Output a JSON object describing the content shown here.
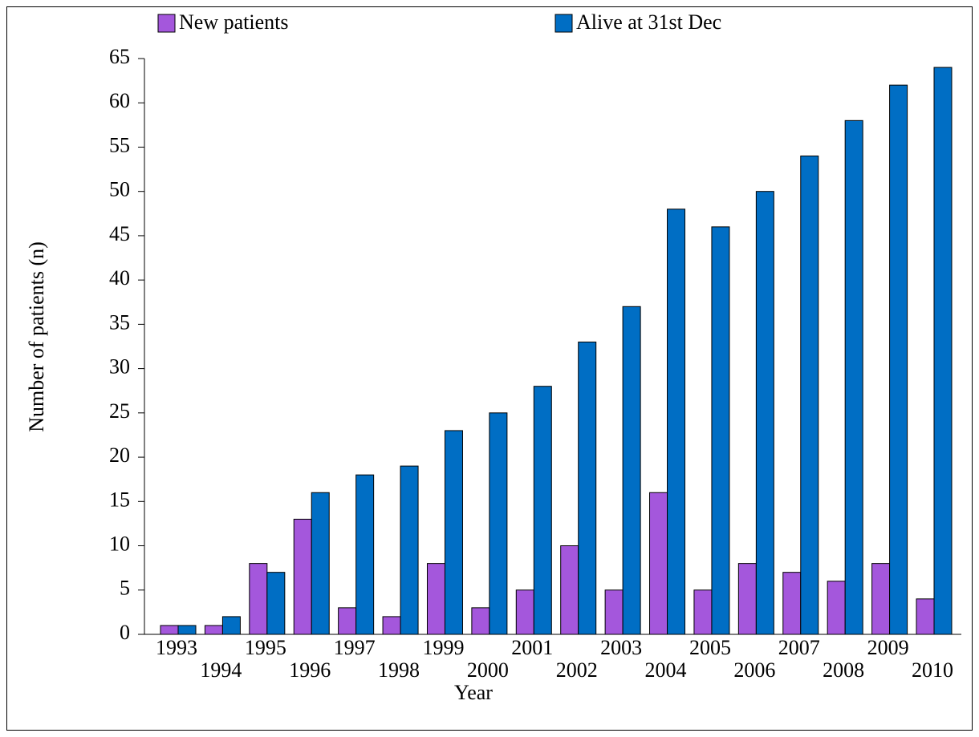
{
  "chart_data": {
    "type": "bar",
    "xlabel": "Year",
    "ylabel": "Number of patients (n)",
    "categories": [
      "1993",
      "1994",
      "1995",
      "1996",
      "1997",
      "1998",
      "1999",
      "2000",
      "2001",
      "2002",
      "2003",
      "2004",
      "2005",
      "2006",
      "2007",
      "2008",
      "2009",
      "2010"
    ],
    "series": [
      {
        "name": "New patients",
        "color": "#a457dc",
        "values": [
          1,
          1,
          8,
          13,
          3,
          2,
          8,
          3,
          5,
          10,
          5,
          16,
          5,
          8,
          7,
          6,
          8,
          4
        ]
      },
      {
        "name": "Alive at 31st Dec",
        "color": "#006ec4",
        "values": [
          1,
          2,
          7,
          16,
          18,
          19,
          23,
          25,
          28,
          33,
          37,
          48,
          46,
          50,
          54,
          58,
          62,
          64
        ]
      }
    ],
    "ylim": [
      0,
      65
    ],
    "yticks": [
      0,
      5,
      10,
      15,
      20,
      25,
      30,
      35,
      40,
      45,
      50,
      55,
      60,
      65
    ],
    "grid": false,
    "legend": "top"
  }
}
